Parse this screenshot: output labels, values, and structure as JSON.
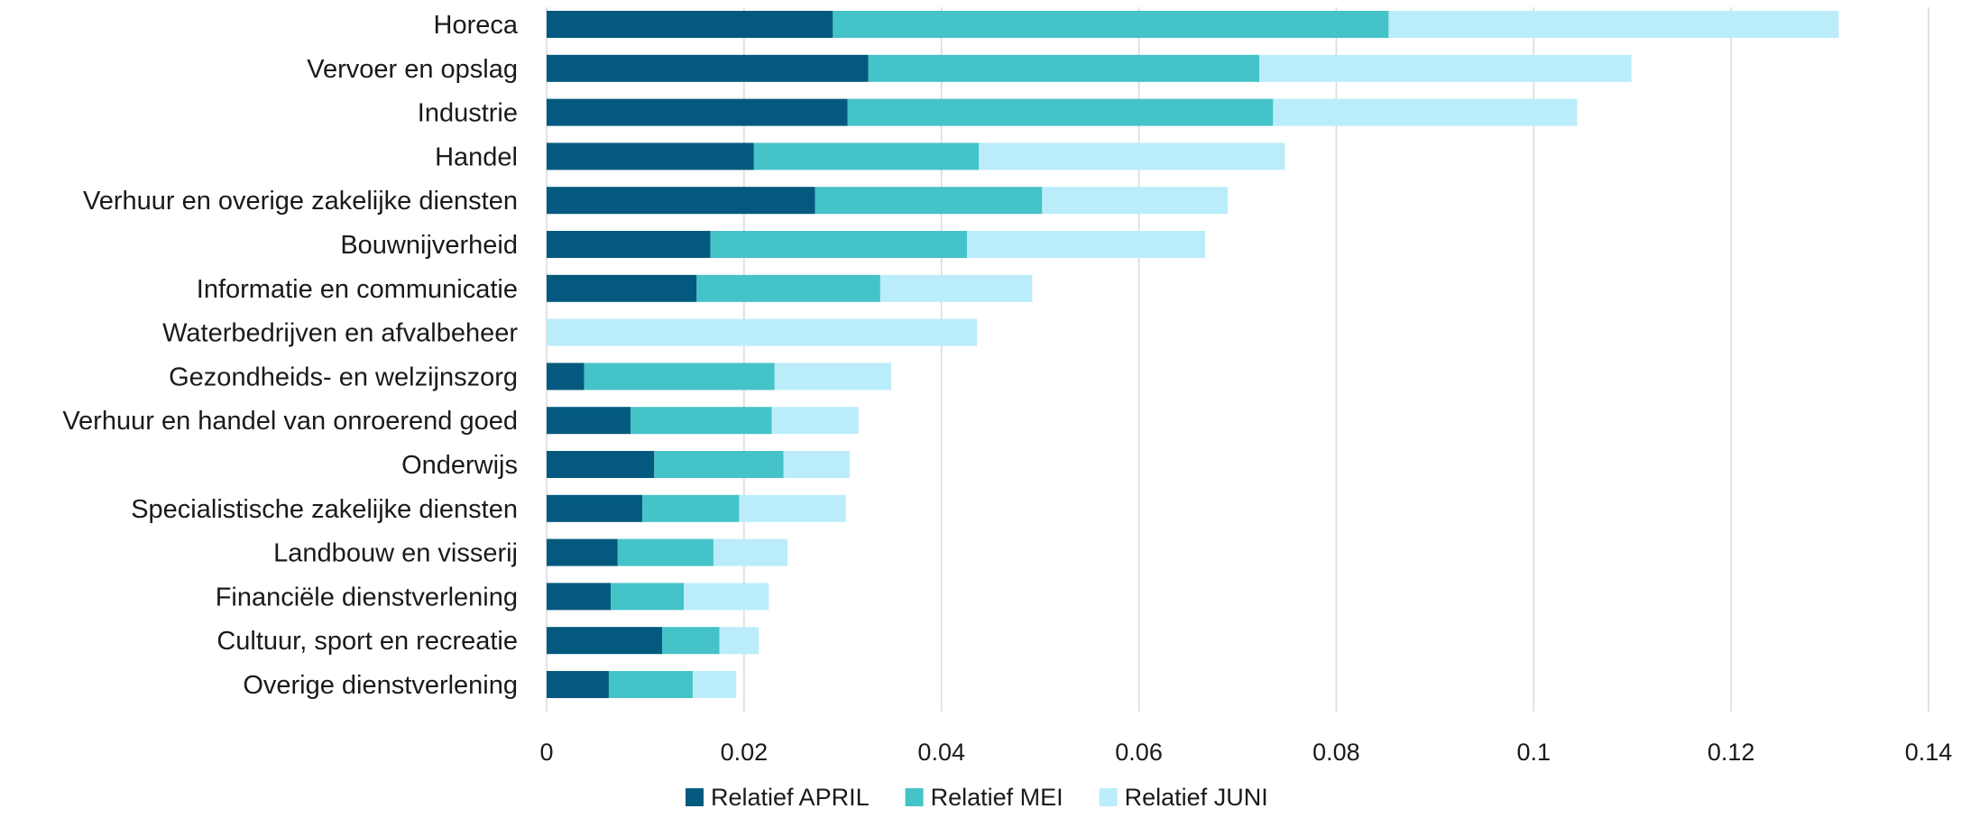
{
  "chart_data": {
    "type": "bar",
    "orientation": "horizontal",
    "stacked": true,
    "categories": [
      "Horeca",
      "Vervoer en opslag",
      "Industrie",
      "Handel",
      "Verhuur en overige zakelijke diensten",
      "Bouwnijverheid",
      "Informatie en communicatie",
      "Waterbedrijven en afvalbeheer",
      "Gezondheids- en welzijnszorg",
      "Verhuur en handel van onroerend goed",
      "Onderwijs",
      "Specialistische zakelijke diensten",
      "Landbouw en visserij",
      "Financiële dienstverlening",
      "Cultuur, sport en recreatie",
      "Overige dienstverlening"
    ],
    "series": [
      {
        "name": "Relatief APRIL",
        "color": "#035a7e",
        "values": [
          0.029,
          0.0326,
          0.0305,
          0.021,
          0.0272,
          0.0166,
          0.0152,
          0.0,
          0.0038,
          0.0085,
          0.0109,
          0.0097,
          0.0072,
          0.0065,
          0.0117,
          0.0063
        ]
      },
      {
        "name": "Relatief MEI",
        "color": "#44c3c8",
        "values": [
          0.0563,
          0.0396,
          0.0431,
          0.0228,
          0.023,
          0.026,
          0.0186,
          0.0,
          0.0193,
          0.0143,
          0.0131,
          0.0098,
          0.0097,
          0.0074,
          0.0058,
          0.0085
        ]
      },
      {
        "name": "Relatief JUNI",
        "color": "#baedf9",
        "values": [
          0.0456,
          0.0377,
          0.0308,
          0.031,
          0.0188,
          0.0241,
          0.0154,
          0.0436,
          0.0118,
          0.0088,
          0.0067,
          0.0108,
          0.0075,
          0.0086,
          0.004,
          0.0044
        ]
      }
    ],
    "xlim": [
      0,
      0.14
    ],
    "xticks": [
      "0",
      "0.02",
      "0.04",
      "0.06",
      "0.08",
      "0.1",
      "0.12",
      "0.14"
    ],
    "grid": "vertical",
    "legend": "bottom-center"
  }
}
